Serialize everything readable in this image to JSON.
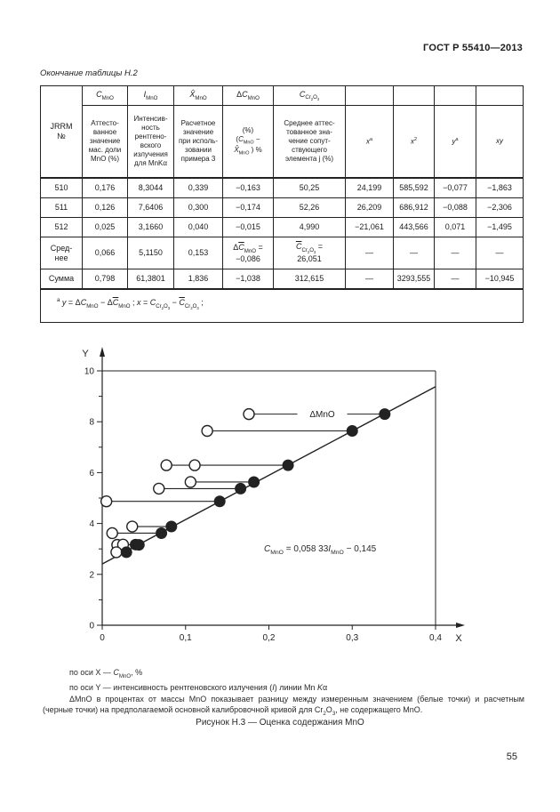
{
  "page": {
    "header": "ГОСТ Р 55410—2013",
    "page_number": "55"
  },
  "table": {
    "caption": "<i>Окончание таблицы Н.2</i>",
    "corner": "JRRM<br>№",
    "symbols": [
      "<i>C</i><sub>MnO</sub>",
      "<i>I</i><sub>MnO</sub>",
      "<i>X̂</i><sub>MnO</sub>",
      "Δ<i>C</i><sub>MnO</sub>",
      "<i>C</i><sub>Cr<sub>2</sub>O<sub>3</sub></sub>",
      "",
      "",
      "",
      ""
    ],
    "descriptions": [
      "Аттесто-<br>ванное<br>значение<br>мас. доли<br>MnO (%)",
      "Интенсив-<br>ность<br>рентгено-<br>вского<br>излучения<br>для MnKα",
      "Расчетное<br>значение<br>при исполь-<br>зовании<br>примера 3",
      "(%)<br>(<i>C</i><sub>MnO</sub> −<br><i>X̂</i><sub>MnO</sub> ) %",
      "Среднее аттес-<br>тованное зна-<br>чение сопут-<br>ствующего<br>элемента j (%)",
      "<i>x</i><sup>a</sup>",
      "<i>x</i><sup>2</sup>",
      "<i>y</i><sup>a</sup>",
      "<i>xy</i>"
    ],
    "rows": [
      [
        "510",
        "0,176",
        "8,3044",
        "0,339",
        "−0,163",
        "50,25",
        "24,199",
        "585,592",
        "−0,077",
        "−1,863"
      ],
      [
        "511",
        "0,126",
        "7,6406",
        "0,300",
        "−0,174",
        "52,26",
        "26,209",
        "686,912",
        "−0,088",
        "−2,306"
      ],
      [
        "512",
        "0,025",
        "3,1660",
        "0,040",
        "−0,015",
        "4,990",
        "−21,061",
        "443,566",
        "0,071",
        "−1,495"
      ],
      [
        "Сред-<br>нее",
        "0,066",
        "5,1150",
        "0,153",
        "Δ<span class='ovl'><i>C</i></span><sub>MnO</sub> =<br>−0,086",
        "<span class='ovl'><i>C</i></span><sub>Cr<sub>2</sub>O<sub>3</sub></sub> =<br>26,051",
        "—",
        "—",
        "—",
        "—"
      ],
      [
        "Сумма",
        "0,798",
        "61,3801",
        "1,836",
        "−1,038",
        "312,615",
        "—",
        "3293,555",
        "—",
        "−10,945"
      ]
    ],
    "footnote": "<sup>a</sup> <i>y</i> = Δ<i>C</i><sub>MnO</sub> − Δ<span class='ovl'><i>C</i></span><sub>MnO</sub> ; <i>x</i> = <i>C</i><sub>Cr<sub>2</sub>O<sub>3</sub></sub> − <span class='ovl'><i>C</i></span><sub>Cr<sub>2</sub>O<sub>3</sub></sub> ;"
  },
  "chart_data": {
    "type": "scatter",
    "xlabel": "X",
    "ylabel": "Y",
    "xlim": [
      0,
      0.4
    ],
    "ylim": [
      0,
      10
    ],
    "x_ticks": [
      0,
      0.1,
      0.2,
      0.3,
      0.4
    ],
    "x_tick_labels": [
      "0",
      "0,1",
      "0,2",
      "0,3",
      "0,4"
    ],
    "y_ticks": [
      0,
      2,
      4,
      6,
      8,
      10
    ],
    "y_minor_ticks": [
      1,
      3,
      5,
      7,
      9
    ],
    "grid": false,
    "calibration_line": {
      "x": [
        0,
        0.4
      ],
      "y": [
        2.41,
        9.38
      ]
    },
    "equation_html": "<i>C</i><sub>MnO</sub> = 0,058 33<i>I</i><sub>MnO</sub> − 0,145",
    "equation_text": "C_MnO = 0,058 33 I_MnO − 0,145",
    "delta_label": "ΔMnO",
    "delta_label_x": 0.264,
    "pairs": [
      {
        "y": 8.3,
        "measured_x": [
          0.176
        ],
        "calculated_x": 0.339,
        "has_label": true
      },
      {
        "y": 7.64,
        "measured_x": [
          0.126
        ],
        "calculated_x": 0.3
      },
      {
        "y": 6.29,
        "measured_x": [
          0.077,
          0.111
        ],
        "calculated_x": 0.223
      },
      {
        "y": 5.63,
        "measured_x": [
          0.106
        ],
        "calculated_x": 0.182
      },
      {
        "y": 5.37,
        "measured_x": [
          0.068
        ],
        "calculated_x": 0.166
      },
      {
        "y": 4.87,
        "measured_x": [
          0.005
        ],
        "calculated_x": 0.141
      },
      {
        "y": 3.88,
        "measured_x": [
          0.036
        ],
        "calculated_x": 0.083
      },
      {
        "y": 3.62,
        "measured_x": [
          0.012
        ],
        "calculated_x": 0.071
      },
      {
        "y": 3.16,
        "measured_x": [
          0.018
        ],
        "calculated_x": 0.044
      },
      {
        "y": 3.17,
        "measured_x": [
          0.025
        ],
        "calculated_x": 0.04
      },
      {
        "y": 2.87,
        "measured_x": [
          0.017
        ],
        "calculated_x": 0.029
      }
    ]
  },
  "figure": {
    "notes": [
      "по оси X — <i>C</i><sub>MnO</sub>, %",
      "по оси Y — интенсивность рентгеновского излучения (<i>I</i>) линии Mn <i>K</i>α",
      "ΔMnO в процентах от массы MnO показывает разницу между измеренным значением (белые точки) и расчетным (черные точки) на предполагаемой основной калибровочной кривой для Cr<sub>2</sub>O<sub>3</sub>, не содержащего MnO."
    ],
    "caption": "Рисунок Н.3 — Оценка содержания MnO"
  }
}
